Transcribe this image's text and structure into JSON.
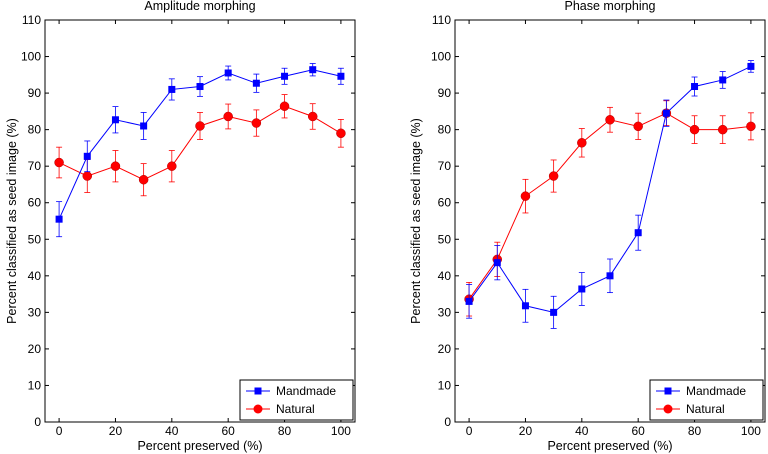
{
  "chart_data": [
    {
      "type": "line",
      "title": "Amplitude morphing",
      "xlabel": "Percent preserved (%)",
      "ylabel": "Percent classified as seed image (%)",
      "xlim": [
        -5,
        105
      ],
      "ylim": [
        0,
        110
      ],
      "xticks": [
        0,
        20,
        40,
        60,
        80,
        100
      ],
      "yticks": [
        0,
        10,
        20,
        30,
        40,
        50,
        60,
        70,
        80,
        90,
        100,
        110
      ],
      "grid": false,
      "legend": "bottom-right",
      "x": [
        0,
        10,
        20,
        30,
        40,
        50,
        60,
        70,
        80,
        90,
        100
      ],
      "series": [
        {
          "name": "Mandmade",
          "color": "#0000ff",
          "marker": "square",
          "values": [
            55.5,
            72.7,
            82.7,
            81.0,
            91.0,
            91.8,
            95.5,
            92.7,
            94.6,
            96.4,
            94.6
          ],
          "errors": [
            4.8,
            4.2,
            3.6,
            3.7,
            2.9,
            2.7,
            1.9,
            2.5,
            2.2,
            1.7,
            2.2
          ]
        },
        {
          "name": "Natural",
          "color": "#ff0000",
          "marker": "circle",
          "values": [
            71.0,
            67.3,
            70.0,
            66.3,
            70.0,
            81.0,
            83.6,
            81.8,
            86.4,
            83.6,
            79.0
          ],
          "errors": [
            4.2,
            4.5,
            4.3,
            4.4,
            4.3,
            3.7,
            3.4,
            3.6,
            3.2,
            3.5,
            3.8
          ]
        }
      ]
    },
    {
      "type": "line",
      "title": "Phase morphing",
      "xlabel": "Percent preserved (%)",
      "ylabel": "Percent classified as seed image (%)",
      "xlim": [
        -5,
        105
      ],
      "ylim": [
        0,
        110
      ],
      "xticks": [
        0,
        20,
        40,
        60,
        80,
        100
      ],
      "yticks": [
        0,
        10,
        20,
        30,
        40,
        50,
        60,
        70,
        80,
        90,
        100,
        110
      ],
      "grid": false,
      "legend": "bottom-right",
      "x": [
        0,
        10,
        20,
        30,
        40,
        50,
        60,
        70,
        80,
        90,
        100
      ],
      "series": [
        {
          "name": "Mandmade",
          "color": "#0000ff",
          "marker": "square",
          "values": [
            33.0,
            43.6,
            31.8,
            30.0,
            36.4,
            40.0,
            51.8,
            84.5,
            91.8,
            93.6,
            97.3
          ],
          "errors": [
            4.6,
            4.7,
            4.5,
            4.4,
            4.5,
            4.6,
            4.8,
            3.6,
            2.6,
            2.3,
            1.6
          ]
        },
        {
          "name": "Natural",
          "color": "#ff0000",
          "marker": "circle",
          "values": [
            33.6,
            44.5,
            61.8,
            67.3,
            76.4,
            82.7,
            80.9,
            84.5,
            80.0,
            80.0,
            80.9
          ],
          "errors": [
            4.6,
            4.7,
            4.6,
            4.4,
            3.9,
            3.4,
            3.6,
            3.4,
            3.8,
            3.8,
            3.7
          ]
        }
      ]
    }
  ]
}
